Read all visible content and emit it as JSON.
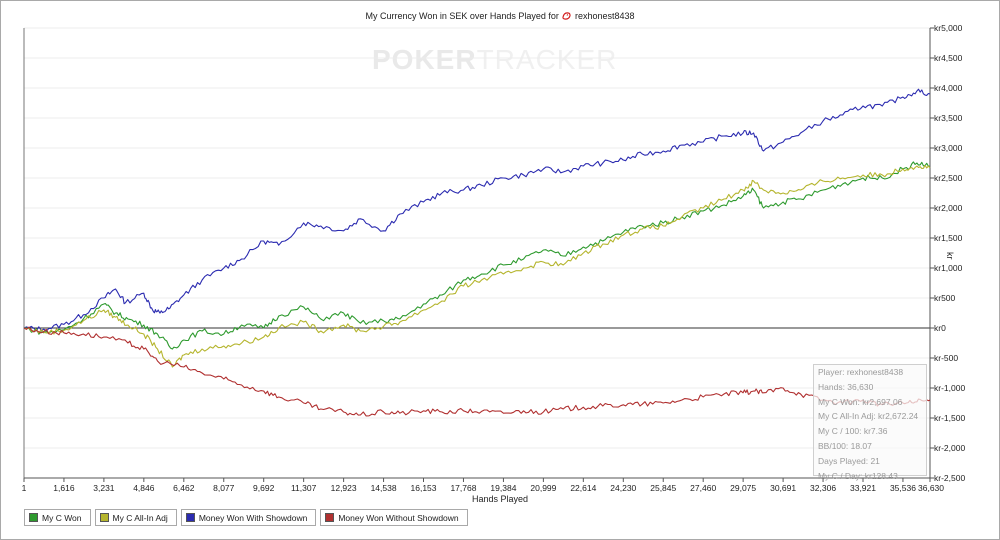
{
  "title": {
    "text_before": "My Currency Won in SEK over Hands Played for",
    "player": "rexhonest8438",
    "icon": "pokerstars-logo-icon"
  },
  "watermark": {
    "part_a": "POKER",
    "part_b": "TRACKER"
  },
  "chart_data": {
    "type": "line",
    "xlabel": "Hands Played",
    "ylabel": "kr",
    "xlim": [
      1,
      36630
    ],
    "ylim": [
      -2500,
      5000
    ],
    "x_ticks": [
      "1",
      "1,616",
      "3,231",
      "4,846",
      "6,462",
      "8,077",
      "9,692",
      "11,307",
      "12,923",
      "14,538",
      "16,153",
      "17,768",
      "19,384",
      "20,999",
      "22,614",
      "24,230",
      "25,845",
      "27,460",
      "29,075",
      "30,691",
      "32,306",
      "33,921",
      "35,536",
      "36,630"
    ],
    "x_tick_values": [
      1,
      1616,
      3231,
      4846,
      6462,
      8077,
      9692,
      11307,
      12923,
      14538,
      16153,
      17768,
      19384,
      20999,
      22614,
      24230,
      25845,
      27460,
      29075,
      30691,
      32306,
      33921,
      35536,
      36630
    ],
    "y_ticks": [
      "kr5,000",
      "kr4,500",
      "kr4,000",
      "kr3,500",
      "kr3,000",
      "kr2,500",
      "kr2,000",
      "kr1,500",
      "kr1,000",
      "kr500",
      "kr0",
      "kr-500",
      "kr-1,000",
      "kr-1,500",
      "kr-2,000",
      "kr-2,500"
    ],
    "y_tick_values": [
      5000,
      4500,
      4000,
      3500,
      3000,
      2500,
      2000,
      1500,
      1000,
      500,
      0,
      -500,
      -1000,
      -1500,
      -2000,
      -2500
    ],
    "grid": "horizontal",
    "legend_position": "bottom-left",
    "series": [
      {
        "name": "Money Won With Showdown",
        "color": "#2b2bb0",
        "x": [
          1,
          800,
          1616,
          2400,
          3231,
          3700,
          4100,
          4846,
          5200,
          5500,
          5900,
          6462,
          7200,
          8077,
          8800,
          9692,
          10300,
          11307,
          12000,
          12923,
          13600,
          14538,
          15200,
          16153,
          16900,
          17768,
          18500,
          19384,
          20200,
          20999,
          21800,
          22614,
          23400,
          24230,
          25000,
          25845,
          26600,
          27460,
          28300,
          29075,
          29500,
          29900,
          30691,
          31400,
          32306,
          33100,
          33921,
          34700,
          35536,
          36100,
          36630
        ],
        "y": [
          0,
          -20,
          60,
          220,
          500,
          650,
          420,
          580,
          300,
          250,
          330,
          550,
          800,
          1000,
          1150,
          1450,
          1380,
          1750,
          1700,
          1620,
          1820,
          1620,
          1900,
          2100,
          2250,
          2300,
          2380,
          2500,
          2550,
          2650,
          2600,
          2700,
          2750,
          2800,
          2900,
          2950,
          3050,
          3100,
          3200,
          3250,
          3250,
          2950,
          3100,
          3250,
          3450,
          3550,
          3700,
          3700,
          3850,
          3950,
          3900
        ]
      },
      {
        "name": "My C Won",
        "color": "#2e9a2e",
        "x": [
          1,
          800,
          1616,
          2400,
          3231,
          3700,
          4200,
          4846,
          5400,
          6000,
          6462,
          7200,
          8077,
          8800,
          9692,
          10300,
          11307,
          12000,
          12923,
          13600,
          14538,
          15200,
          16153,
          16900,
          17768,
          18500,
          19384,
          20200,
          20999,
          21800,
          22614,
          23400,
          24230,
          25000,
          25845,
          26600,
          27460,
          28300,
          29075,
          29500,
          29900,
          30691,
          31400,
          32306,
          33100,
          33921,
          34700,
          35536,
          36100,
          36630
        ],
        "y": [
          0,
          -80,
          -30,
          150,
          400,
          250,
          150,
          50,
          -100,
          -350,
          -200,
          -50,
          -100,
          50,
          0,
          200,
          350,
          150,
          250,
          80,
          120,
          150,
          400,
          550,
          800,
          900,
          1050,
          1150,
          1300,
          1200,
          1350,
          1450,
          1600,
          1700,
          1750,
          1850,
          1950,
          2050,
          2200,
          2300,
          2000,
          2100,
          2150,
          2300,
          2400,
          2500,
          2500,
          2650,
          2750,
          2697
        ]
      },
      {
        "name": "My C All-In Adj",
        "color": "#b5b52e",
        "x": [
          1,
          800,
          1616,
          2400,
          3231,
          3700,
          4200,
          4846,
          5400,
          6000,
          6462,
          7200,
          8077,
          8800,
          9692,
          10300,
          11307,
          12000,
          12923,
          13600,
          14538,
          15200,
          16153,
          16900,
          17768,
          18500,
          19384,
          20200,
          20999,
          21800,
          22614,
          23400,
          24230,
          25000,
          25845,
          26600,
          27460,
          28300,
          29075,
          29500,
          29900,
          30691,
          31400,
          32306,
          33100,
          33921,
          34700,
          35536,
          36100,
          36630
        ],
        "y": [
          0,
          -70,
          -40,
          120,
          300,
          180,
          50,
          -100,
          -350,
          -650,
          -450,
          -350,
          -300,
          -250,
          -150,
          0,
          100,
          -50,
          50,
          -50,
          30,
          100,
          300,
          450,
          700,
          800,
          900,
          1000,
          1100,
          1050,
          1250,
          1400,
          1550,
          1650,
          1700,
          1850,
          2000,
          2150,
          2300,
          2450,
          2300,
          2250,
          2300,
          2450,
          2500,
          2550,
          2550,
          2650,
          2700,
          2672
        ]
      },
      {
        "name": "Money Won Without Showdown",
        "color": "#b03030",
        "x": [
          1,
          800,
          1616,
          2400,
          3231,
          4200,
          4846,
          5400,
          6462,
          7200,
          8077,
          8800,
          9692,
          10300,
          11307,
          12000,
          12923,
          13600,
          14538,
          15200,
          16153,
          16900,
          17768,
          18500,
          19384,
          20200,
          20999,
          21800,
          22614,
          23400,
          24230,
          25000,
          25845,
          26600,
          27460,
          28300,
          29075,
          29500,
          29900,
          30691,
          31400,
          32306,
          33100,
          33921,
          34700,
          35536,
          36100,
          36630
        ],
        "y": [
          0,
          -60,
          -80,
          -100,
          -150,
          -250,
          -350,
          -550,
          -650,
          -750,
          -850,
          -950,
          -1050,
          -1150,
          -1250,
          -1350,
          -1400,
          -1450,
          -1400,
          -1420,
          -1380,
          -1400,
          -1380,
          -1390,
          -1420,
          -1380,
          -1400,
          -1350,
          -1320,
          -1300,
          -1280,
          -1270,
          -1250,
          -1200,
          -1150,
          -1100,
          -1080,
          -1050,
          -1080,
          -1000,
          -1100,
          -1200,
          -1250,
          -1200,
          -1280,
          -1250,
          -1230,
          -1200
        ]
      }
    ]
  },
  "tooltip": {
    "lines": [
      "Player: rexhonest8438",
      "Hands: 36,630",
      "My C Won: kr2,697.06",
      "My C All-In Adj: kr2,672.24",
      "My C / 100: kr7.36",
      "BB/100: 18.07",
      "Days Played: 21",
      "My C / Day: kr128.43"
    ]
  },
  "legend": [
    {
      "label": "My C Won",
      "color": "#2e9a2e"
    },
    {
      "label": "My C All-In Adj",
      "color": "#b5b52e"
    },
    {
      "label": "Money Won With Showdown",
      "color": "#2b2bb0"
    },
    {
      "label": "Money Won Without Showdown",
      "color": "#b03030"
    }
  ]
}
